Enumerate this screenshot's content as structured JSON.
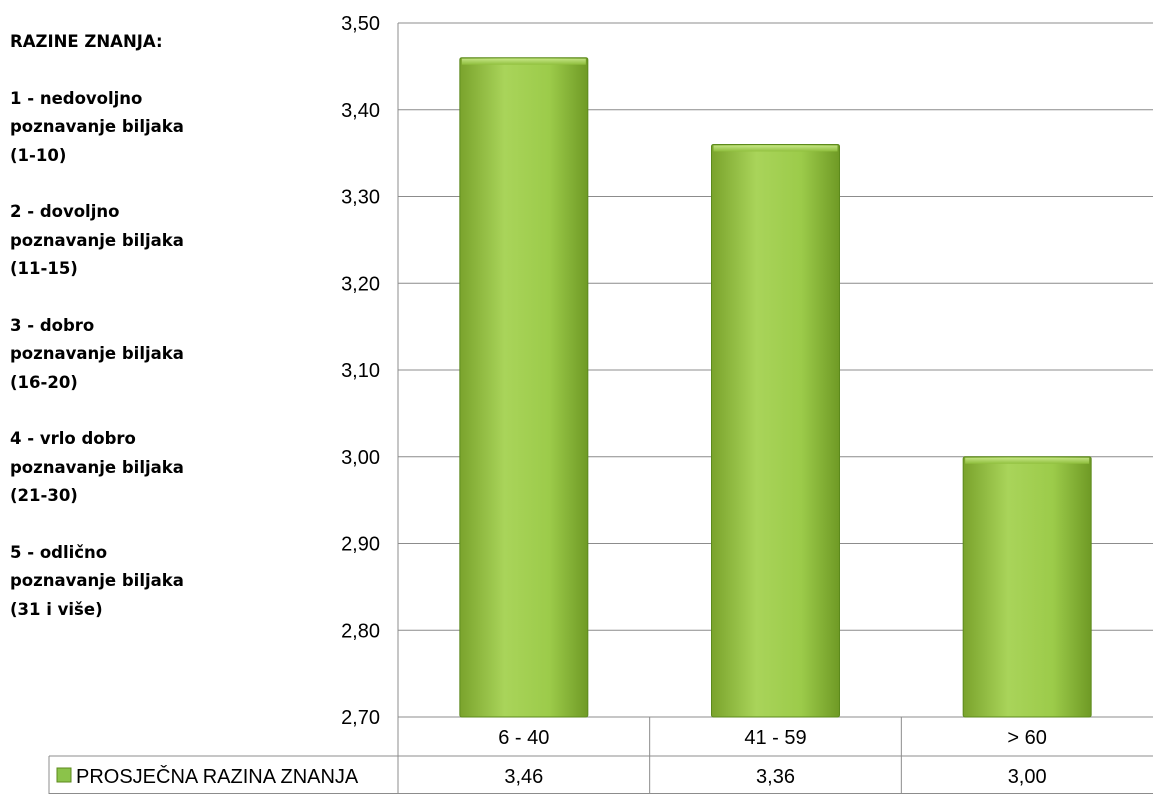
{
  "legend_panel": {
    "title": "RAZINE ZNANJA:",
    "levels": [
      {
        "lines": [
          "1 - nedovoljno",
          "poznavanje biljaka",
          "(1-10)"
        ]
      },
      {
        "lines": [
          "2 - dovoljno",
          "poznavanje biljaka",
          "(11-15)"
        ]
      },
      {
        "lines": [
          "3 - dobro",
          "poznavanje biljaka",
          "(16-20)"
        ]
      },
      {
        "lines": [
          "4 - vrlo dobro",
          "poznavanje biljaka",
          "(21-30)"
        ]
      },
      {
        "lines": [
          "5 - odlično",
          "poznavanje biljaka",
          "(31 i više)"
        ]
      }
    ]
  },
  "chart_data": {
    "type": "bar",
    "categories": [
      "6 - 40",
      "41 - 59",
      "> 60"
    ],
    "series": [
      {
        "name": "PROSJEČNA RAZINA ZNANJA",
        "values": [
          3.46,
          3.36,
          3.0
        ],
        "value_labels": [
          "3,46",
          "3,36",
          "3,00"
        ],
        "color": "#8bc34a"
      }
    ],
    "ylim": [
      2.7,
      3.5
    ],
    "yticks": [
      2.7,
      2.8,
      2.9,
      3.0,
      3.1,
      3.2,
      3.3,
      3.4,
      3.5
    ],
    "ytick_labels": [
      "2,70",
      "2,80",
      "2,90",
      "3,00",
      "3,10",
      "3,20",
      "3,30",
      "3,40",
      "3,50"
    ],
    "grid": true,
    "legend": "data-table"
  },
  "colors": {
    "bar_light": "#a9d45a",
    "bar_dark": "#6f9a25",
    "grid": "#8c8c8c",
    "legend_key": "#8bc34a"
  }
}
